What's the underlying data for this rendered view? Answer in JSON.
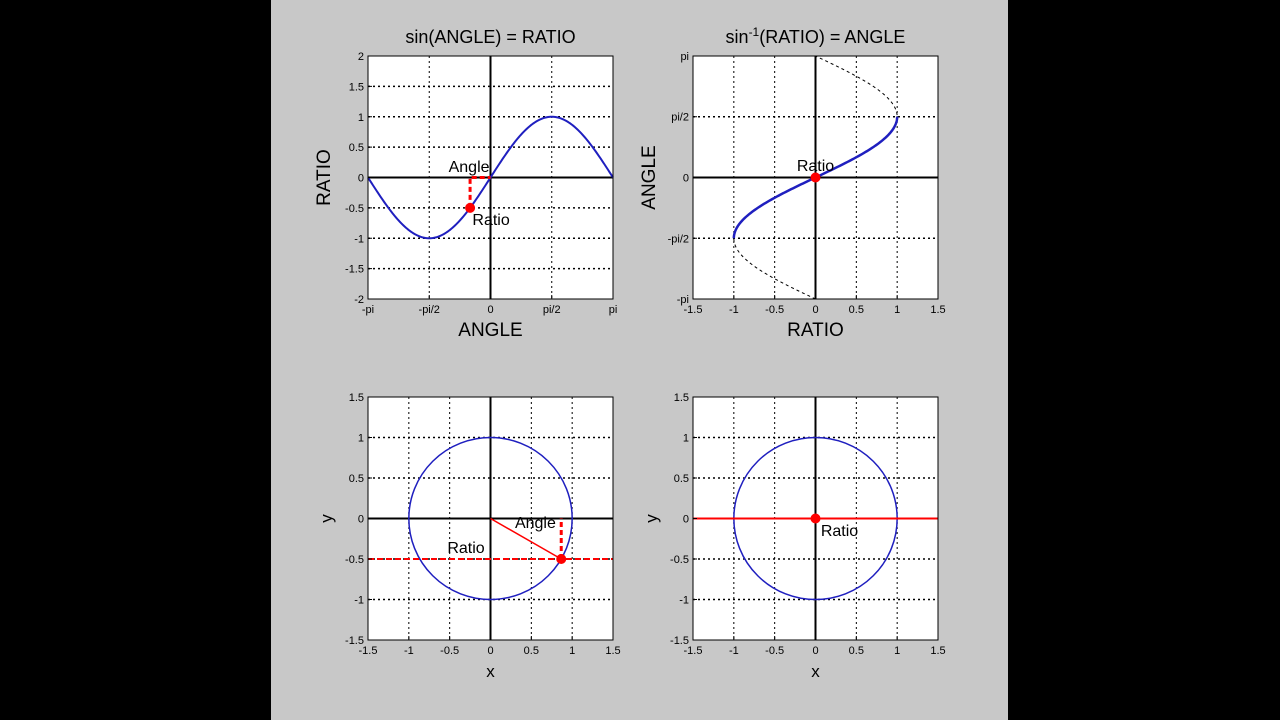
{
  "colors": {
    "figure_bg": "#c8c8c8",
    "side_bg": "#000000",
    "curve": "#1f1fbf",
    "marker": "#ff0000",
    "grid": "#000000"
  },
  "chart_data": [
    {
      "type": "line",
      "title_main": "sin(ANGLE) = RATIO",
      "xlabel": "ANGLE",
      "ylabel": "RATIO",
      "xlim": [
        -3.14159,
        3.14159
      ],
      "ylim": [
        -2,
        2
      ],
      "xticks": [
        -3.14159,
        -1.5708,
        0,
        1.5708,
        3.14159
      ],
      "xtick_labels": [
        "-pi",
        "-pi/2",
        "0",
        "pi/2",
        "pi"
      ],
      "yticks": [
        -2,
        -1.5,
        -1,
        -0.5,
        0,
        0.5,
        1,
        1.5,
        2
      ],
      "ytick_labels": [
        "-2",
        "-1.5",
        "-1",
        "-0.5",
        "0",
        "0.5",
        "1",
        "1.5",
        "2"
      ],
      "grid": true,
      "series": [
        {
          "function": "sin(x)",
          "x_range": [
            -3.14159,
            3.14159
          ]
        }
      ],
      "point": {
        "x": -0.5236,
        "y": -0.5
      },
      "annotations": [
        {
          "text": "Angle"
        },
        {
          "text": "Ratio"
        }
      ]
    },
    {
      "type": "line",
      "title_main": "sin",
      "title_sup": "-1",
      "title_rest": "(RATIO) = ANGLE",
      "xlabel": "RATIO",
      "ylabel": "ANGLE",
      "xlim": [
        -1.5,
        1.5
      ],
      "ylim": [
        -3.14159,
        3.14159
      ],
      "xticks": [
        -1.5,
        -1,
        -0.5,
        0,
        0.5,
        1,
        1.5
      ],
      "xtick_labels": [
        "-1.5",
        "-1",
        "-0.5",
        "0",
        "0.5",
        "1",
        "1.5"
      ],
      "yticks": [
        -3.14159,
        -1.5708,
        0,
        1.5708,
        3.14159
      ],
      "ytick_labels": [
        "-pi",
        "-pi/2",
        "0",
        "pi/2",
        "pi"
      ],
      "grid": true,
      "series": [
        {
          "function": "x = sin(y)",
          "y_range": [
            -1.5708,
            1.5708
          ],
          "style": "solid"
        },
        {
          "function": "x = sin(y)",
          "y_range": [
            -3.14159,
            3.14159
          ],
          "style": "dashed"
        }
      ],
      "point": {
        "x": 0,
        "y": 0
      },
      "annotations": [
        {
          "text": "Ratio"
        }
      ]
    },
    {
      "type": "line",
      "title_main": "",
      "xlabel": "x",
      "ylabel": "y",
      "xlim": [
        -1.5,
        1.5
      ],
      "ylim": [
        -1.5,
        1.5
      ],
      "xticks": [
        -1.5,
        -1,
        -0.5,
        0,
        0.5,
        1,
        1.5
      ],
      "xtick_labels": [
        "-1.5",
        "-1",
        "-0.5",
        "0",
        "0.5",
        "1",
        "1.5"
      ],
      "yticks": [
        -1.5,
        -1,
        -0.5,
        0,
        0.5,
        1,
        1.5
      ],
      "ytick_labels": [
        "-1.5",
        "-1",
        "-0.5",
        "0",
        "0.5",
        "1",
        "1.5"
      ],
      "grid": true,
      "series": [
        {
          "function": "unit circle"
        }
      ],
      "point": {
        "x": 0.866,
        "y": -0.5
      },
      "hline": -0.5,
      "annotations": [
        {
          "text": "Angle"
        },
        {
          "text": "Ratio"
        }
      ]
    },
    {
      "type": "line",
      "title_main": "",
      "xlabel": "x",
      "ylabel": "y",
      "xlim": [
        -1.5,
        1.5
      ],
      "ylim": [
        -1.5,
        1.5
      ],
      "xticks": [
        -1.5,
        -1,
        -0.5,
        0,
        0.5,
        1,
        1.5
      ],
      "xtick_labels": [
        "-1.5",
        "-1",
        "-0.5",
        "0",
        "0.5",
        "1",
        "1.5"
      ],
      "yticks": [
        -1.5,
        -1,
        -0.5,
        0,
        0.5,
        1,
        1.5
      ],
      "ytick_labels": [
        "-1.5",
        "-1",
        "-0.5",
        "0",
        "0.5",
        "1",
        "1.5"
      ],
      "grid": true,
      "series": [
        {
          "function": "unit circle"
        }
      ],
      "point": {
        "x": 0,
        "y": 0
      },
      "hline": 0,
      "annotations": [
        {
          "text": "Ratio"
        }
      ]
    }
  ]
}
